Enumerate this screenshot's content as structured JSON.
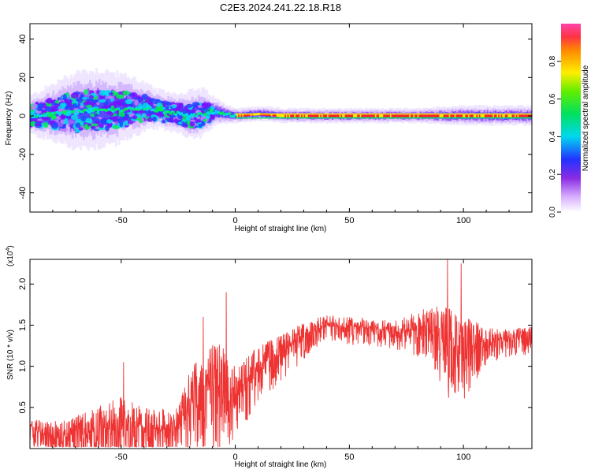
{
  "title": "C2E3.2024.241.22.18.R18",
  "colors": {
    "snr_line": "#ee3333",
    "ridge": [
      "#ff2222",
      "#ffee00",
      "#00ee55",
      "#00ddee",
      "#2244ff",
      "#7711ff",
      "#c080ff"
    ]
  },
  "chart_data": [
    {
      "type": "heatmap",
      "xlabel": "Height of straight line (km)",
      "ylabel": "Frequency (Hz)",
      "xlim": [
        -90,
        130
      ],
      "ylim": [
        -50,
        48
      ],
      "x_ticks": [
        -50,
        0,
        50,
        100
      ],
      "y_ticks": [
        -40,
        -20,
        0,
        20,
        40
      ],
      "grid": false,
      "dominant_frequency_track": {
        "x": [
          -90,
          -80,
          -70,
          -60,
          -50,
          -45,
          -40,
          -35,
          -30,
          -25,
          -20,
          -15,
          -10,
          -5,
          0,
          10,
          20,
          30,
          40,
          50,
          60,
          70,
          80,
          90,
          100,
          110,
          120,
          130
        ],
        "y": [
          0,
          1,
          2,
          3,
          3,
          4,
          4,
          3,
          2,
          1,
          0,
          1,
          2,
          1,
          0,
          1,
          0,
          0,
          0,
          0,
          0,
          0,
          0,
          0,
          0,
          0,
          0,
          0
        ],
        "spread_hz": [
          4,
          6,
          8,
          8,
          7,
          6,
          5,
          4,
          4,
          4,
          5,
          5,
          3,
          2,
          1.5,
          1.5,
          1.5,
          1.5,
          1.5,
          1.5,
          1.5,
          1.5,
          1.5,
          1.8,
          2,
          2,
          2,
          2
        ]
      },
      "colorbar": {
        "label": "Normalized spectral amplitude",
        "range": [
          0.0,
          1.0
        ],
        "ticks": [
          0.0,
          0.2,
          0.4,
          0.6,
          0.8
        ]
      }
    },
    {
      "type": "line",
      "xlabel": "Height of straight line (km)",
      "ylabel": "SNR (10 * v/v)",
      "y_multiplier_label": "(x10",
      "y_multiplier_exp": "4",
      "xlim": [
        -90,
        130
      ],
      "ylim": [
        0.0,
        2.3
      ],
      "x_ticks": [
        -50,
        0,
        50,
        100
      ],
      "y_ticks": [
        0.5,
        1.0,
        1.5,
        2.0
      ],
      "grid": false,
      "envelope": {
        "x": [
          -90,
          -80,
          -70,
          -60,
          -50,
          -40,
          -30,
          -25,
          -20,
          -15,
          -10,
          -5,
          0,
          10,
          20,
          30,
          40,
          50,
          60,
          70,
          80,
          85,
          90,
          95,
          100,
          110,
          120,
          130
        ],
        "mean": [
          0.25,
          0.2,
          0.22,
          0.3,
          0.35,
          0.3,
          0.3,
          0.3,
          0.6,
          0.8,
          0.85,
          0.9,
          0.7,
          1.05,
          1.2,
          1.4,
          1.52,
          1.5,
          1.48,
          1.45,
          1.5,
          1.5,
          1.45,
          1.35,
          1.3,
          1.35,
          1.35,
          1.38
        ],
        "noise": [
          0.15,
          0.2,
          0.25,
          0.3,
          0.4,
          0.3,
          0.25,
          0.3,
          0.5,
          0.55,
          0.6,
          0.55,
          0.4,
          0.3,
          0.25,
          0.2,
          0.15,
          0.15,
          0.15,
          0.15,
          0.25,
          0.3,
          0.45,
          0.5,
          0.45,
          0.2,
          0.15,
          0.15
        ]
      },
      "peaks": [
        {
          "x": -49,
          "y": 1.05
        },
        {
          "x": -14,
          "y": 1.6
        },
        {
          "x": -4,
          "y": 1.9
        },
        {
          "x": 93,
          "y": 2.3
        },
        {
          "x": 99,
          "y": 2.25
        }
      ]
    }
  ]
}
